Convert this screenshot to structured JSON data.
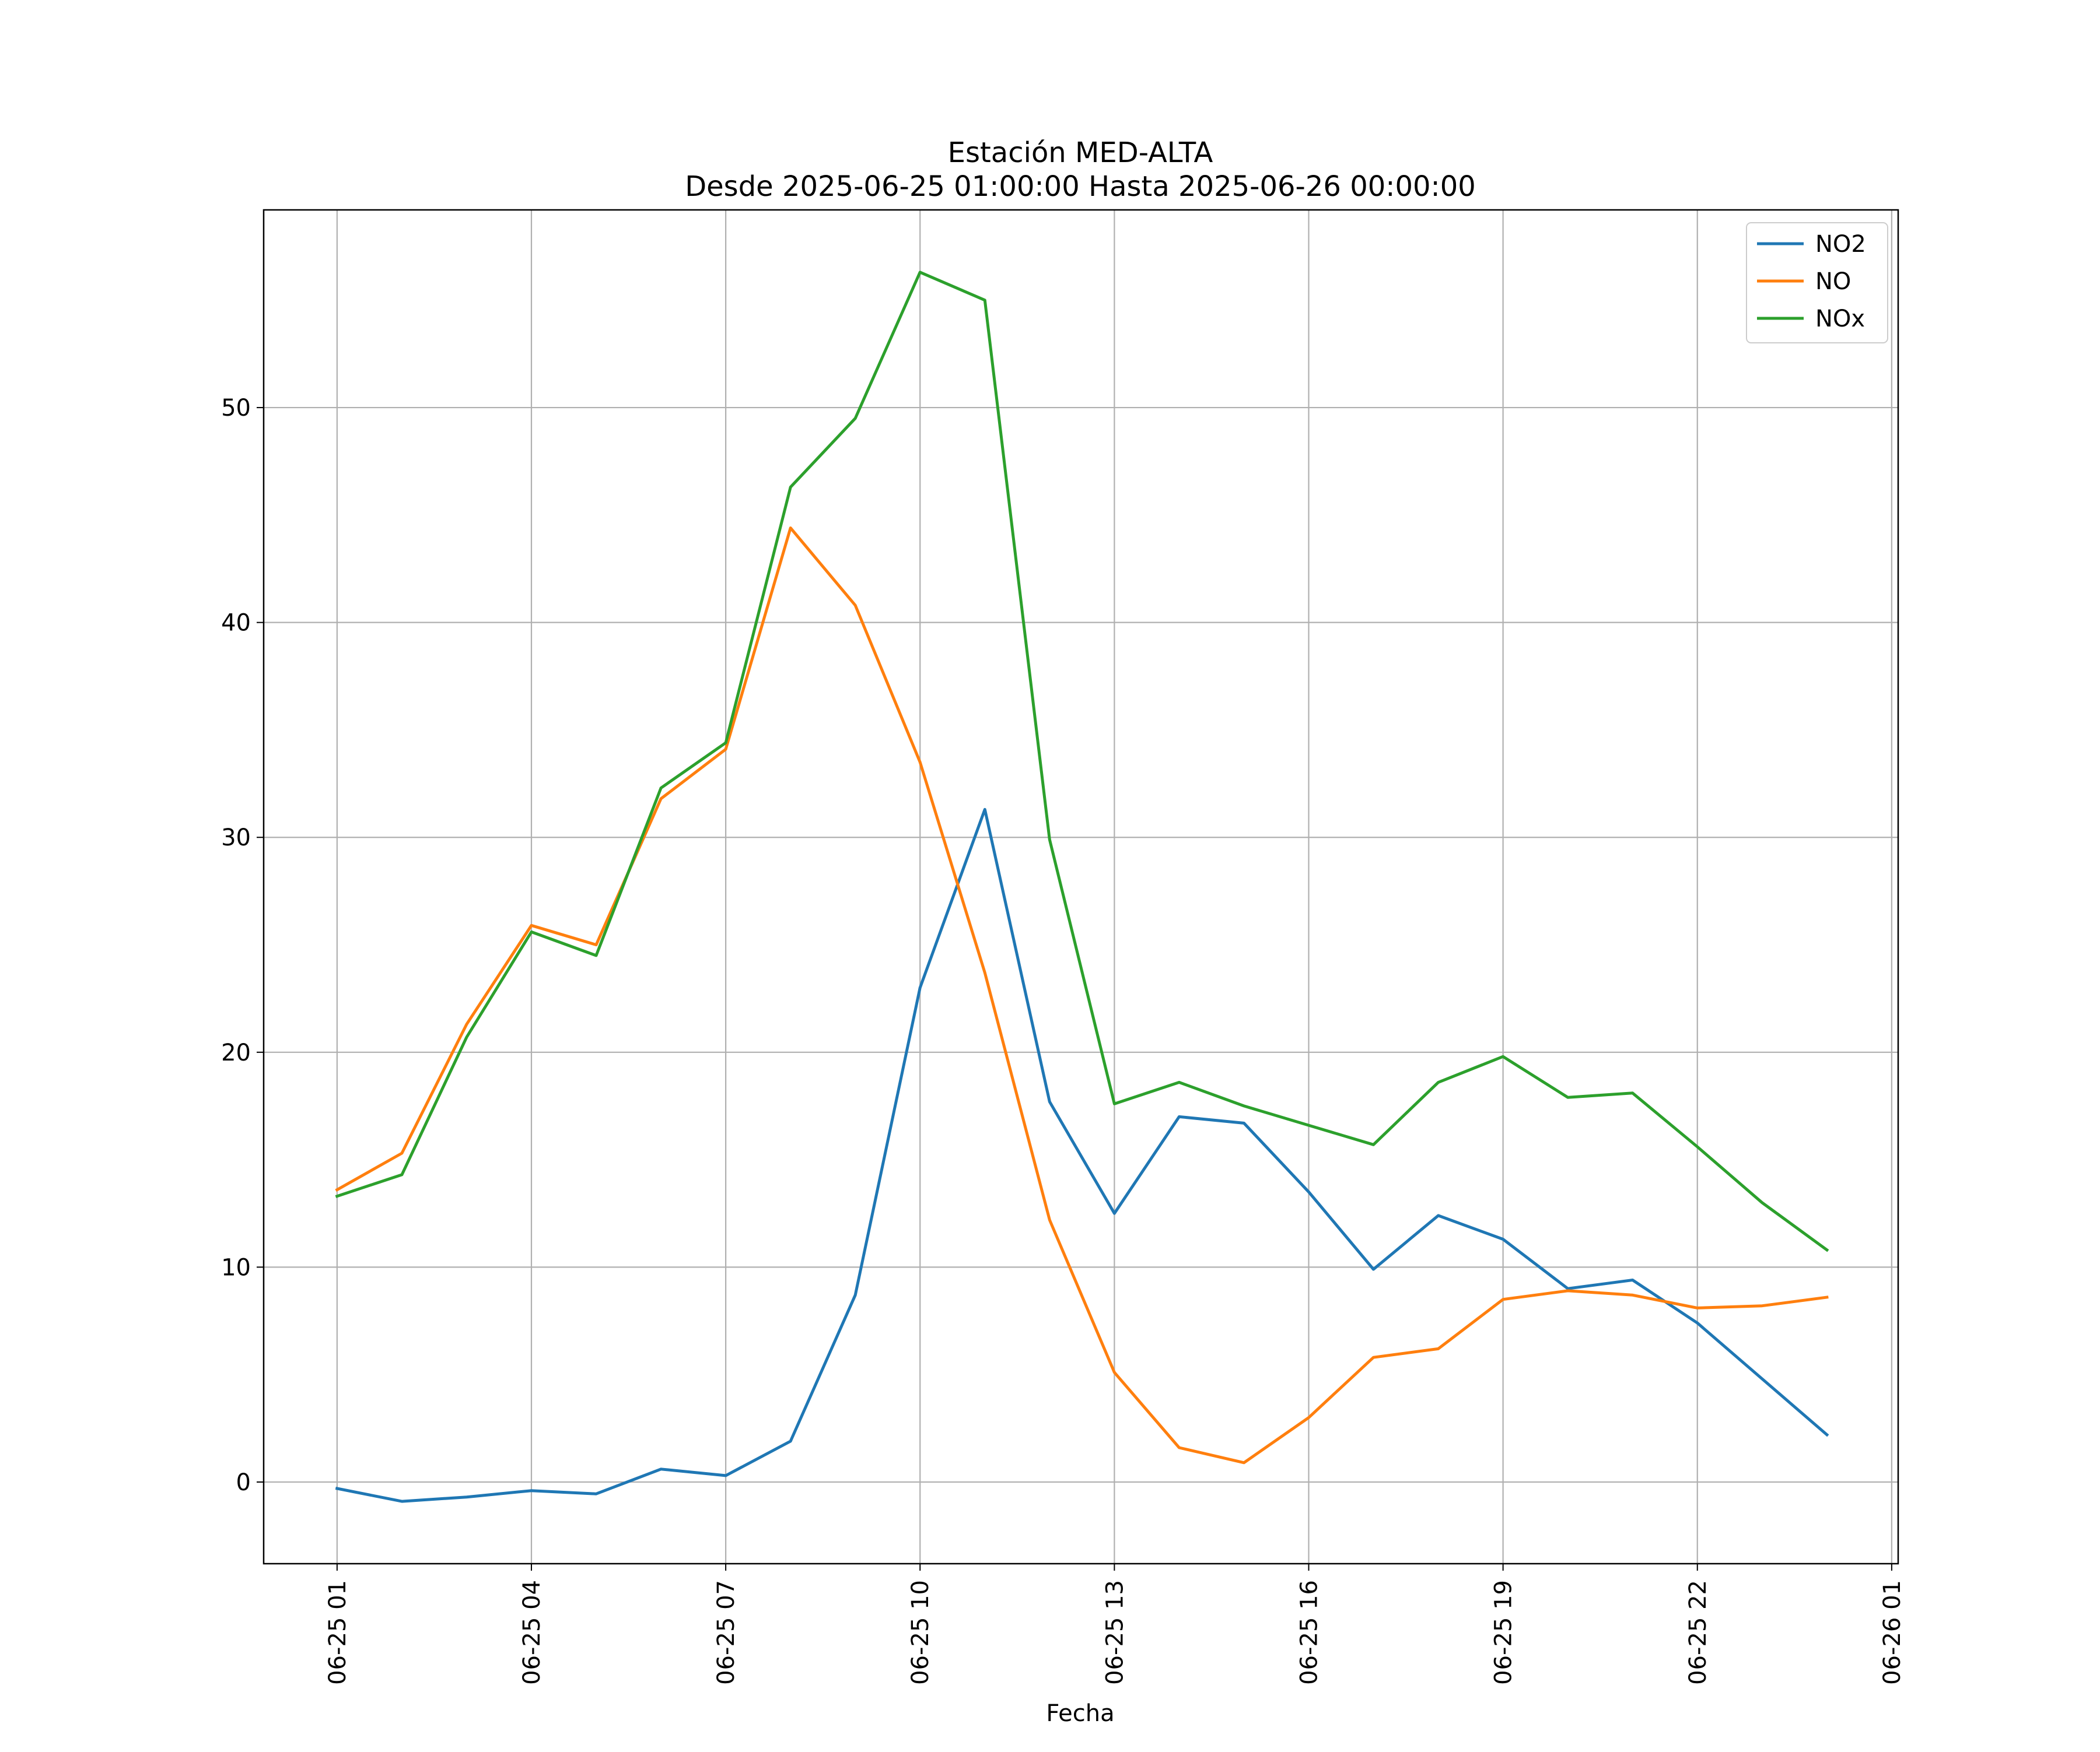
{
  "chart_data": {
    "type": "line",
    "title": "Estación MED-ALTA",
    "subtitle": "Desde 2025-06-25 01:00:00 Hasta 2025-06-26 00:00:00",
    "xlabel": "Fecha",
    "ylabel": "",
    "x": [
      "2025-06-25 01:00",
      "2025-06-25 02:00",
      "2025-06-25 03:00",
      "2025-06-25 04:00",
      "2025-06-25 05:00",
      "2025-06-25 06:00",
      "2025-06-25 07:00",
      "2025-06-25 08:00",
      "2025-06-25 09:00",
      "2025-06-25 10:00",
      "2025-06-25 11:00",
      "2025-06-25 12:00",
      "2025-06-25 13:00",
      "2025-06-25 14:00",
      "2025-06-25 15:00",
      "2025-06-25 16:00",
      "2025-06-25 17:00",
      "2025-06-25 18:00",
      "2025-06-25 19:00",
      "2025-06-25 20:00",
      "2025-06-25 21:00",
      "2025-06-25 22:00",
      "2025-06-25 23:00",
      "2025-06-26 00:00"
    ],
    "series": [
      {
        "name": "NO2",
        "color": "#1f77b4",
        "values": [
          -0.3,
          -0.9,
          -0.7,
          -0.4,
          -0.55,
          0.6,
          0.3,
          1.9,
          8.7,
          23.0,
          31.3,
          17.7,
          12.5,
          17.0,
          16.7,
          13.5,
          9.9,
          12.4,
          11.3,
          9.0,
          9.4,
          7.4,
          4.8,
          2.2
        ]
      },
      {
        "name": "NO",
        "color": "#ff7f0e",
        "values": [
          13.6,
          15.3,
          21.3,
          25.9,
          25.0,
          31.8,
          34.1,
          44.4,
          40.8,
          33.5,
          23.7,
          12.2,
          5.1,
          1.6,
          0.9,
          3.0,
          5.8,
          6.2,
          8.5,
          8.9,
          8.7,
          8.1,
          8.2,
          8.6
        ]
      },
      {
        "name": "NOx",
        "color": "#2ca02c",
        "values": [
          13.3,
          14.3,
          20.7,
          25.6,
          24.5,
          32.3,
          34.4,
          46.3,
          49.5,
          56.3,
          55.0,
          29.9,
          17.6,
          18.6,
          17.5,
          16.6,
          15.7,
          18.6,
          19.8,
          17.9,
          18.1,
          15.6,
          13.0,
          10.8
        ]
      }
    ],
    "ylim": [
      -3.8,
      59.2
    ],
    "xlim": [
      "2025-06-24 23:52",
      "2025-06-26 01:06"
    ],
    "yticks": [
      0,
      10,
      20,
      30,
      40,
      50
    ],
    "xticks": [
      "2025-06-25 01:00",
      "2025-06-25 04:00",
      "2025-06-25 07:00",
      "2025-06-25 10:00",
      "2025-06-25 13:00",
      "2025-06-25 16:00",
      "2025-06-25 19:00",
      "2025-06-25 22:00",
      "2025-06-26 01:00"
    ],
    "xtick_labels": [
      "06-25 01",
      "06-25 04",
      "06-25 07",
      "06-25 10",
      "06-25 13",
      "06-25 16",
      "06-25 19",
      "06-25 22",
      "06-26 01"
    ],
    "grid": true,
    "legend_position": "top-right"
  }
}
